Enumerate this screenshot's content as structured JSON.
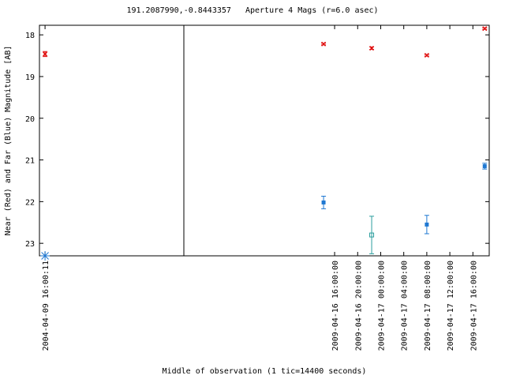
{
  "chart_data": {
    "type": "scatter",
    "title": "191.2087990,-0.8443357   Aperture 4 Mags (r=6.0 asec)",
    "x_label": "Middle of observation (1 tic=14400 seconds)",
    "y_label": "Near (Red) and Far (Blue) Magnitude [AB]",
    "y_inverted": true,
    "ylim": [
      17.77,
      23.3
    ],
    "yticks": [
      18,
      19,
      20,
      21,
      22,
      23
    ],
    "x_segments": [
      {
        "xlim": [
          "2004-04-09 15:23:00",
          "2004-04-10 07:23:00"
        ],
        "xticks": [
          "2004-04-09 16:00:11"
        ]
      },
      {
        "xlim": [
          "2009-04-15 13:50:00",
          "2009-04-17 18:50:00"
        ],
        "xticks": [
          "2009-04-16 16:00:00",
          "2009-04-16 20:00:00",
          "2009-04-17 00:00:00",
          "2009-04-17 04:00:00",
          "2009-04-17 08:00:00",
          "2009-04-17 12:00:00",
          "2009-04-17 16:00:00"
        ]
      }
    ],
    "x": [
      "2004-04-09 16:00:11",
      "2009-04-16 14:05:00",
      "2009-04-16 22:26:00",
      "2009-04-17 08:00:00",
      "2009-04-17 18:03:00"
    ],
    "series": [
      {
        "color": "#e01010",
        "marker": "x",
        "values": [
          18.46,
          18.22,
          18.32,
          18.49,
          17.85
        ],
        "errors": [
          0.06,
          0.02,
          0.03,
          0.02,
          0.02
        ]
      },
      {
        "color": "#1f78d2",
        "marker": "filled-square",
        "values": [
          null,
          22.02,
          null,
          22.55,
          21.15
        ],
        "errors": [
          null,
          0.15,
          null,
          0.22,
          0.07
        ]
      },
      {
        "color": "#2a9d9d",
        "marker": "open-square",
        "values": [
          null,
          null,
          22.8,
          null,
          null
        ],
        "errors": [
          null,
          null,
          0.45,
          null,
          null
        ]
      },
      {
        "color": "#1f78d2",
        "marker": "asterisk",
        "values": [
          23.3,
          null,
          null,
          null,
          null
        ]
      }
    ]
  }
}
